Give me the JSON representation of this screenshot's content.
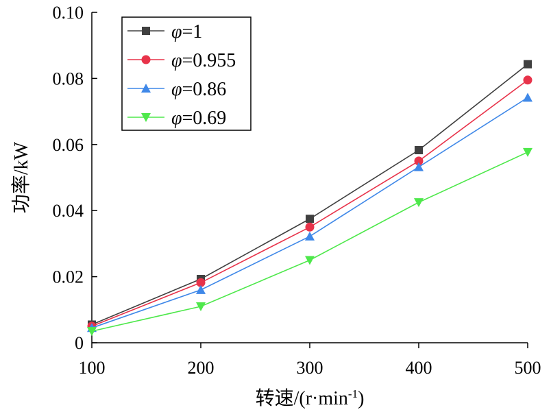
{
  "chart_data": {
    "type": "line",
    "title": "",
    "xlabel": "转速/(r·min",
    "xlabel_sup": "-1",
    "xlabel_end": ")",
    "ylabel": "功率/kW",
    "x": [
      100,
      200,
      300,
      400,
      500
    ],
    "x_ticks": [
      "100",
      "200",
      "300",
      "400",
      "500"
    ],
    "y_ticks": [
      "0",
      "0.02",
      "0.04",
      "0.06",
      "0.08",
      "0.10"
    ],
    "xlim": [
      100,
      500
    ],
    "ylim": [
      0,
      0.1
    ],
    "grid": false,
    "legend_position": "top-left",
    "series": [
      {
        "name": "φ=1",
        "symbol": "φ",
        "value_label": "=1",
        "color": "#404040",
        "marker": "square",
        "values": [
          0.0055,
          0.0193,
          0.0375,
          0.0583,
          0.0843
        ]
      },
      {
        "name": "φ=0.955",
        "symbol": "φ",
        "value_label": "=0.955",
        "color": "#e8334a",
        "marker": "circle",
        "values": [
          0.005,
          0.0182,
          0.035,
          0.055,
          0.0795
        ]
      },
      {
        "name": "φ=0.86",
        "symbol": "φ",
        "value_label": "=0.86",
        "color": "#3f88e8",
        "marker": "triangle-up",
        "values": [
          0.0045,
          0.016,
          0.0322,
          0.0532,
          0.0742
        ]
      },
      {
        "name": "φ=0.69",
        "symbol": "φ",
        "value_label": "=0.69",
        "color": "#4ee84b",
        "marker": "triangle-down",
        "values": [
          0.0035,
          0.011,
          0.025,
          0.0425,
          0.0577
        ]
      }
    ]
  }
}
